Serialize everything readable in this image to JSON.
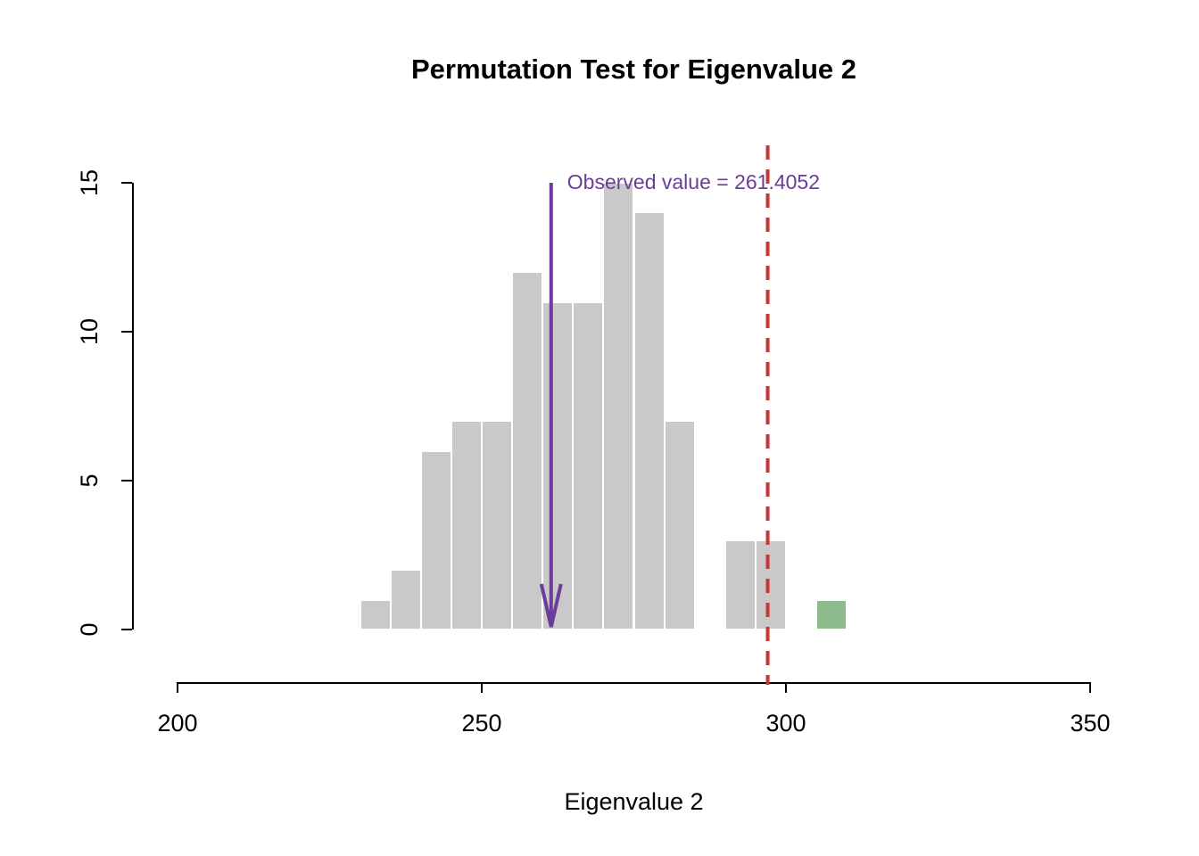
{
  "chart_data": {
    "type": "bar",
    "subtype": "histogram",
    "title": "Permutation Test for Eigenvalue 2",
    "xlabel": "Eigenvalue 2",
    "ylabel": "",
    "xlim": [
      200,
      350
    ],
    "ylim": [
      0,
      15
    ],
    "x_ticks": [
      200,
      250,
      300,
      350
    ],
    "y_ticks": [
      0,
      5,
      10,
      15
    ],
    "grid": false,
    "bin_width": 5,
    "bins": [
      {
        "x0": 230,
        "count": 1
      },
      {
        "x0": 235,
        "count": 2
      },
      {
        "x0": 240,
        "count": 6
      },
      {
        "x0": 245,
        "count": 7
      },
      {
        "x0": 250,
        "count": 7
      },
      {
        "x0": 255,
        "count": 12
      },
      {
        "x0": 260,
        "count": 11
      },
      {
        "x0": 265,
        "count": 11
      },
      {
        "x0": 270,
        "count": 15
      },
      {
        "x0": 275,
        "count": 14
      },
      {
        "x0": 280,
        "count": 7
      },
      {
        "x0": 285,
        "count": 0
      },
      {
        "x0": 290,
        "count": 3
      },
      {
        "x0": 295,
        "count": 3
      },
      {
        "x0": 300,
        "count": 0
      },
      {
        "x0": 305,
        "count": 1,
        "highlight": true
      }
    ],
    "observed_x": 261.4052,
    "dashed_line_x": 297,
    "annotation": {
      "text": "Observed value = 261.4052"
    },
    "colors": {
      "bar": "#c9c9c9",
      "bar_border": "#ffffff",
      "highlight": "#8fbc8f",
      "dashed_line": "#cc3333",
      "observed": "#6a3d9a",
      "axis": "#000000"
    }
  }
}
